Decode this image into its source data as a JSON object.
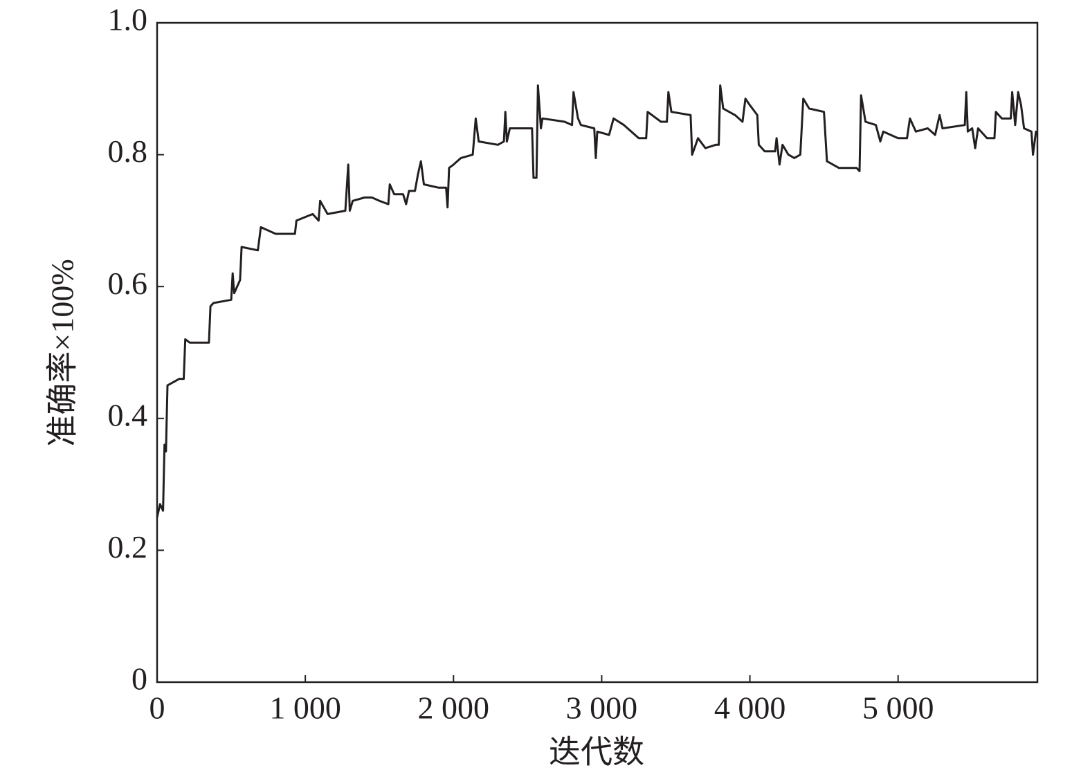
{
  "chart_data": {
    "type": "line",
    "xlabel": "迭代数",
    "ylabel": "准确率×100%",
    "xlim": [
      0,
      5940
    ],
    "ylim": [
      0,
      1.0
    ],
    "xticks": [
      0,
      {
        "value": 1000,
        "label": "1 000"
      },
      {
        "value": 2000,
        "label": "2 000"
      },
      {
        "value": 3000,
        "label": "3 000"
      },
      {
        "value": 4000,
        "label": "4 000"
      },
      {
        "value": 5000,
        "label": "5 000"
      }
    ],
    "yticks": [
      0,
      0.2,
      0.4,
      0.6,
      0.8,
      {
        "value": 1.0,
        "label": "1.0"
      }
    ],
    "grid": false,
    "series": [
      {
        "color": "#231f20",
        "x": [
          0,
          20,
          40,
          50,
          60,
          70,
          150,
          180,
          190,
          220,
          350,
          360,
          380,
          500,
          510,
          520,
          560,
          570,
          680,
          700,
          800,
          930,
          940,
          1050,
          1090,
          1100,
          1150,
          1270,
          1290,
          1300,
          1320,
          1400,
          1450,
          1500,
          1560,
          1570,
          1600,
          1660,
          1680,
          1700,
          1740,
          1760,
          1780,
          1800,
          1900,
          1950,
          1960,
          1970,
          2000,
          2050,
          2130,
          2150,
          2170,
          2300,
          2340,
          2350,
          2360,
          2380,
          2500,
          2530,
          2540,
          2560,
          2570,
          2590,
          2600,
          2750,
          2800,
          2810,
          2840,
          2860,
          2950,
          2960,
          2970,
          3050,
          3080,
          3150,
          3250,
          3300,
          3310,
          3400,
          3440,
          3450,
          3470,
          3600,
          3610,
          3650,
          3700,
          3770,
          3790,
          3800,
          3820,
          3900,
          3950,
          3970,
          4000,
          4050,
          4060,
          4100,
          4170,
          4180,
          4200,
          4220,
          4260,
          4300,
          4340,
          4360,
          4400,
          4500,
          4520,
          4600,
          4720,
          4740,
          4750,
          4780,
          4850,
          4880,
          4900,
          5000,
          5060,
          5080,
          5120,
          5200,
          5250,
          5280,
          5300,
          5450,
          5460,
          5470,
          5500,
          5520,
          5540,
          5600,
          5650,
          5660,
          5700,
          5760,
          5770,
          5790,
          5810,
          5830,
          5850,
          5900,
          5910,
          5930,
          5940
        ],
        "values": [
          0.25,
          0.27,
          0.26,
          0.36,
          0.35,
          0.45,
          0.46,
          0.46,
          0.52,
          0.515,
          0.515,
          0.57,
          0.575,
          0.58,
          0.62,
          0.59,
          0.61,
          0.66,
          0.655,
          0.69,
          0.68,
          0.68,
          0.7,
          0.71,
          0.7,
          0.73,
          0.71,
          0.715,
          0.785,
          0.715,
          0.73,
          0.735,
          0.735,
          0.73,
          0.725,
          0.755,
          0.74,
          0.74,
          0.725,
          0.745,
          0.745,
          0.77,
          0.79,
          0.755,
          0.75,
          0.75,
          0.72,
          0.78,
          0.785,
          0.795,
          0.8,
          0.855,
          0.82,
          0.815,
          0.82,
          0.865,
          0.82,
          0.84,
          0.84,
          0.84,
          0.765,
          0.765,
          0.905,
          0.84,
          0.855,
          0.85,
          0.845,
          0.895,
          0.855,
          0.845,
          0.84,
          0.795,
          0.835,
          0.83,
          0.855,
          0.845,
          0.825,
          0.825,
          0.865,
          0.85,
          0.85,
          0.895,
          0.865,
          0.86,
          0.8,
          0.825,
          0.81,
          0.815,
          0.815,
          0.905,
          0.87,
          0.86,
          0.85,
          0.885,
          0.875,
          0.86,
          0.815,
          0.805,
          0.805,
          0.825,
          0.785,
          0.815,
          0.8,
          0.795,
          0.8,
          0.885,
          0.87,
          0.865,
          0.79,
          0.78,
          0.78,
          0.775,
          0.89,
          0.85,
          0.845,
          0.82,
          0.835,
          0.825,
          0.825,
          0.855,
          0.835,
          0.84,
          0.83,
          0.86,
          0.84,
          0.845,
          0.895,
          0.835,
          0.84,
          0.81,
          0.84,
          0.825,
          0.825,
          0.865,
          0.855,
          0.855,
          0.895,
          0.845,
          0.895,
          0.875,
          0.84,
          0.835,
          0.8,
          0.835,
          0.83
        ]
      }
    ]
  }
}
